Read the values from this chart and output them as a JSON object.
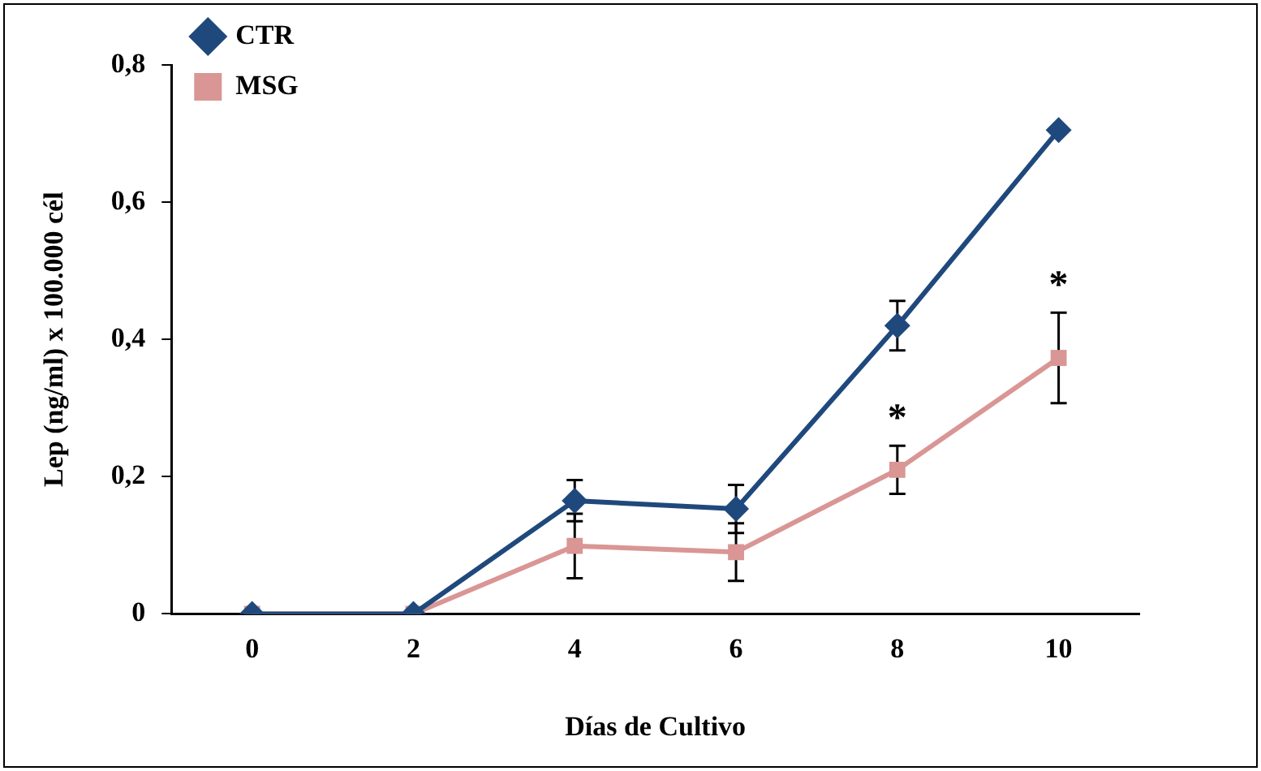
{
  "chart_data": {
    "type": "line",
    "xlabel": "Días de Cultivo",
    "ylabel": "Lep (ng/ml) x 100.000 cél",
    "categories": [
      "0",
      "2",
      "4",
      "6",
      "8",
      "10"
    ],
    "series": [
      {
        "name": "CTR",
        "color": "#1f497d",
        "marker": "diamond",
        "values": [
          0,
          0,
          0.165,
          0.153,
          0.42,
          0.705
        ],
        "errors": [
          null,
          null,
          0.03,
          0.035,
          0.036,
          null
        ]
      },
      {
        "name": "MSG",
        "color": "#d99694",
        "marker": "square",
        "values": [
          0,
          0,
          0.099,
          0.09,
          0.21,
          0.373
        ],
        "errors": [
          null,
          null,
          0.047,
          0.042,
          0.035,
          0.066
        ]
      }
    ],
    "ylim": [
      0,
      0.8
    ],
    "yticks": [
      {
        "value": 0,
        "label": "0"
      },
      {
        "value": 0.2,
        "label": "0,2"
      },
      {
        "value": 0.4,
        "label": "0,4"
      },
      {
        "value": 0.6,
        "label": "0,6"
      },
      {
        "value": 0.8,
        "label": "0,8"
      }
    ],
    "grid": false,
    "legend": "top left",
    "line_style": "solid",
    "annotations": [
      {
        "text": "*",
        "x": "8",
        "y": 0.21
      },
      {
        "text": "*",
        "x": "10",
        "y": 0.373
      }
    ]
  }
}
